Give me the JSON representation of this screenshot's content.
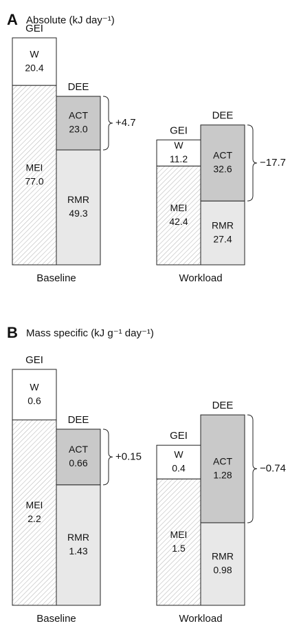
{
  "chart_data": [
    {
      "type": "stacked-pair",
      "label": "A",
      "title": "Absolute (kJ day⁻¹)",
      "categories": [
        "Baseline",
        "Workload"
      ],
      "annotations": [
        "+4.7",
        "−17.7"
      ],
      "stacks": [
        {
          "name": "GEI",
          "series": [
            {
              "name": "W",
              "color": "#ffffff",
              "values": [
                20.4,
                11.2
              ]
            },
            {
              "name": "MEI",
              "color": "#ffffff",
              "hatch": true,
              "values": [
                77.0,
                42.4
              ],
              "value_labels": [
                "77.0",
                "42.4"
              ]
            }
          ]
        },
        {
          "name": "DEE",
          "series": [
            {
              "name": "ACT",
              "color": "#c9c9c9",
              "values": [
                23.0,
                32.6
              ],
              "value_labels": [
                "23.0",
                "32.6"
              ]
            },
            {
              "name": "RMR",
              "color": "#e8e8e8",
              "values": [
                49.3,
                27.4
              ]
            }
          ]
        }
      ]
    },
    {
      "type": "stacked-pair",
      "label": "B",
      "title": "Mass specific (kJ g⁻¹ day⁻¹)",
      "categories": [
        "Baseline",
        "Workload"
      ],
      "annotations": [
        "+0.15",
        "−0.74"
      ],
      "stacks": [
        {
          "name": "GEI",
          "series": [
            {
              "name": "W",
              "color": "#ffffff",
              "values": [
                0.6,
                0.4
              ]
            },
            {
              "name": "MEI",
              "color": "#ffffff",
              "hatch": true,
              "values": [
                2.2,
                1.5
              ]
            }
          ]
        },
        {
          "name": "DEE",
          "series": [
            {
              "name": "ACT",
              "color": "#c9c9c9",
              "values": [
                0.66,
                1.28
              ]
            },
            {
              "name": "RMR",
              "color": "#e8e8e8",
              "values": [
                1.43,
                0.98
              ]
            }
          ]
        }
      ]
    }
  ]
}
